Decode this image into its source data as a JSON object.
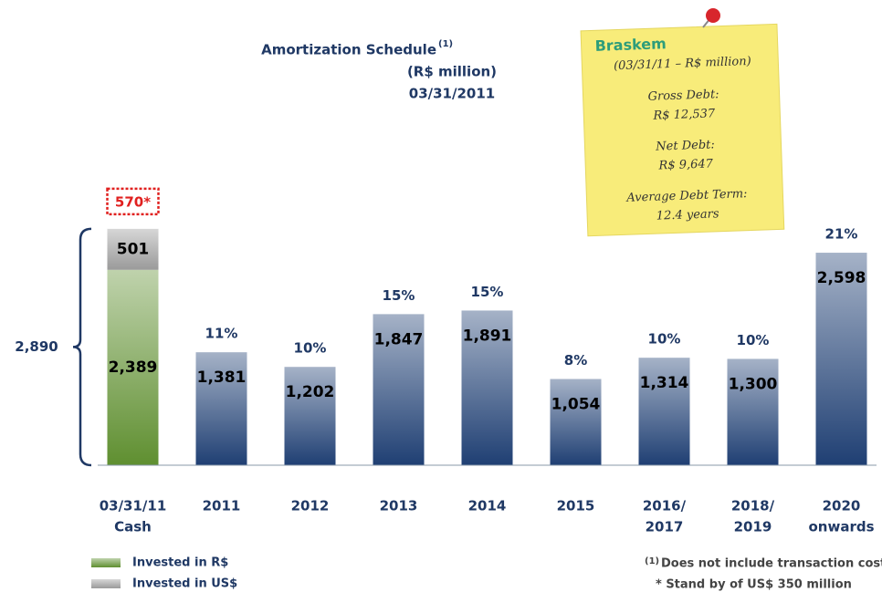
{
  "chart_data": {
    "type": "bar",
    "title": "Amortization Schedule",
    "title_superscript": "(1)",
    "subtitle": "(R$ million)",
    "date": "03/31/2011",
    "categories": [
      [
        "03/31/11",
        "Cash"
      ],
      [
        "2011"
      ],
      [
        "2012"
      ],
      [
        "2013"
      ],
      [
        "2014"
      ],
      [
        "2015"
      ],
      [
        "2016/",
        "2017"
      ],
      [
        "2018/",
        "2019"
      ],
      [
        "2020",
        "onwards"
      ]
    ],
    "series": [
      {
        "name": "Invested in R$",
        "color": "#5f8f30",
        "values": [
          2389,
          null,
          null,
          null,
          null,
          null,
          null,
          null,
          null
        ],
        "value_labels": [
          "2,389",
          null,
          null,
          null,
          null,
          null,
          null,
          null,
          null
        ]
      },
      {
        "name": "Invested in US$",
        "color": "#9a9a9a",
        "values": [
          501,
          null,
          null,
          null,
          null,
          null,
          null,
          null,
          null
        ],
        "value_labels": [
          "501",
          null,
          null,
          null,
          null,
          null,
          null,
          null,
          null
        ]
      },
      {
        "color": "#1f3f73",
        "values": [
          null,
          1381,
          1202,
          1847,
          1891,
          1054,
          1314,
          1300,
          2598
        ],
        "value_labels": [
          null,
          "1,381",
          "1,202",
          "1,847",
          "1,891",
          "1,054",
          "1,314",
          "1,300",
          "2,598"
        ]
      }
    ],
    "share_labels": [
      null,
      "11%",
      "10%",
      "15%",
      "15%",
      "8%",
      "10%",
      "10%",
      "21%"
    ],
    "standby": {
      "value": 570,
      "label": "570*"
    },
    "bracket": {
      "value": 2890,
      "label": "2,890"
    },
    "ylim": [
      0,
      3000
    ],
    "footnote_marker": "(1)",
    "footnote_1": "Does not include transaction costs",
    "footnote_2": "* Stand by of US$ 350 million"
  },
  "note": {
    "logo": "Braskem",
    "heading": "(03/31/11 – R$ million)",
    "gross_label": "Gross Debt:",
    "gross_value": "R$ 12,537",
    "net_label": "Net Debt:",
    "net_value": "R$ 9,647",
    "term_label": "Average Debt Term:",
    "term_value": "12.4 years"
  }
}
